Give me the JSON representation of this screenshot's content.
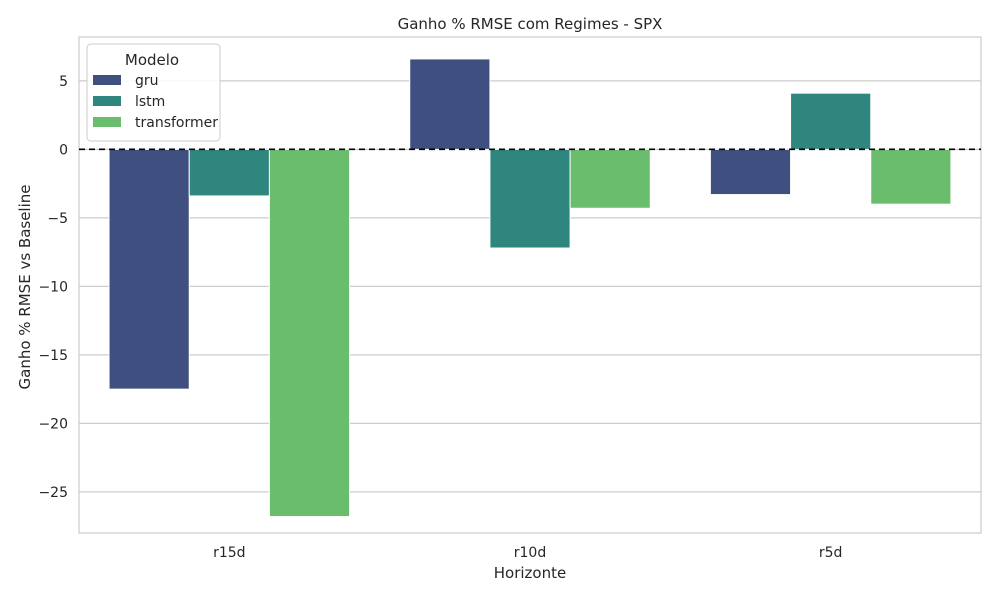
{
  "chart_data": {
    "type": "bar",
    "title": "Ganho % RMSE com Regimes - SPX",
    "xlabel": "Horizonte",
    "ylabel": "Ganho % RMSE vs Baseline",
    "categories": [
      "r15d",
      "r10d",
      "r5d"
    ],
    "series": [
      {
        "name": "gru",
        "values": [
          -17.5,
          6.6,
          -3.3
        ],
        "color": "#3e4f80"
      },
      {
        "name": "lstm",
        "values": [
          -3.4,
          -7.2,
          4.1
        ],
        "color": "#2e867e"
      },
      {
        "name": "transformer",
        "values": [
          -26.8,
          -4.3,
          -4.0
        ],
        "color": "#69bd6c"
      }
    ],
    "ylim": [
      -28,
      8.2
    ],
    "yticks": [
      5,
      0,
      -5,
      -10,
      -15,
      -20,
      -25
    ],
    "ytick_labels": [
      "5",
      "0",
      "−5",
      "−10",
      "−15",
      "−20",
      "−25"
    ],
    "legend": {
      "title": "Modelo",
      "placement": "top-left"
    },
    "grid": true,
    "reference_line": {
      "y": 0,
      "style": "dashed",
      "color": "#000000"
    }
  }
}
